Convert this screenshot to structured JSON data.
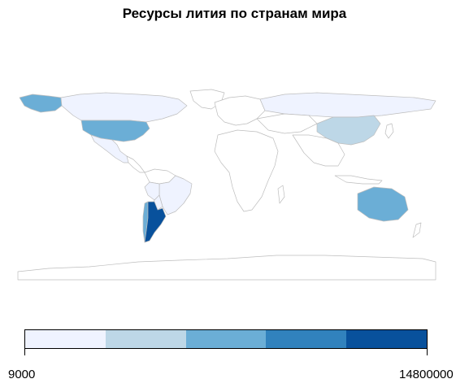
{
  "title": "Ресурсы лития по странам мира",
  "colors": {
    "no_data": "#ffffff",
    "border": "#c8c8c8",
    "bins": [
      "#eff3ff",
      "#bdd7e7",
      "#6baed6",
      "#3182bd",
      "#08519c"
    ]
  },
  "legend": {
    "min_label": "9000",
    "max_label": "14800000"
  },
  "countries_shaded": [
    {
      "name": "Argentina",
      "bin": 4
    },
    {
      "name": "United States",
      "bin": 2
    },
    {
      "name": "Alaska (United States)",
      "bin": 2
    },
    {
      "name": "Australia",
      "bin": 2
    },
    {
      "name": "China",
      "bin": 1
    },
    {
      "name": "Chile",
      "bin": 2
    },
    {
      "name": "Canada",
      "bin": 0
    },
    {
      "name": "Russia",
      "bin": 0
    },
    {
      "name": "Brazil",
      "bin": 0
    },
    {
      "name": "Mexico",
      "bin": 0
    },
    {
      "name": "Bolivia",
      "bin": 0
    },
    {
      "name": "Peru",
      "bin": 0
    }
  ]
}
